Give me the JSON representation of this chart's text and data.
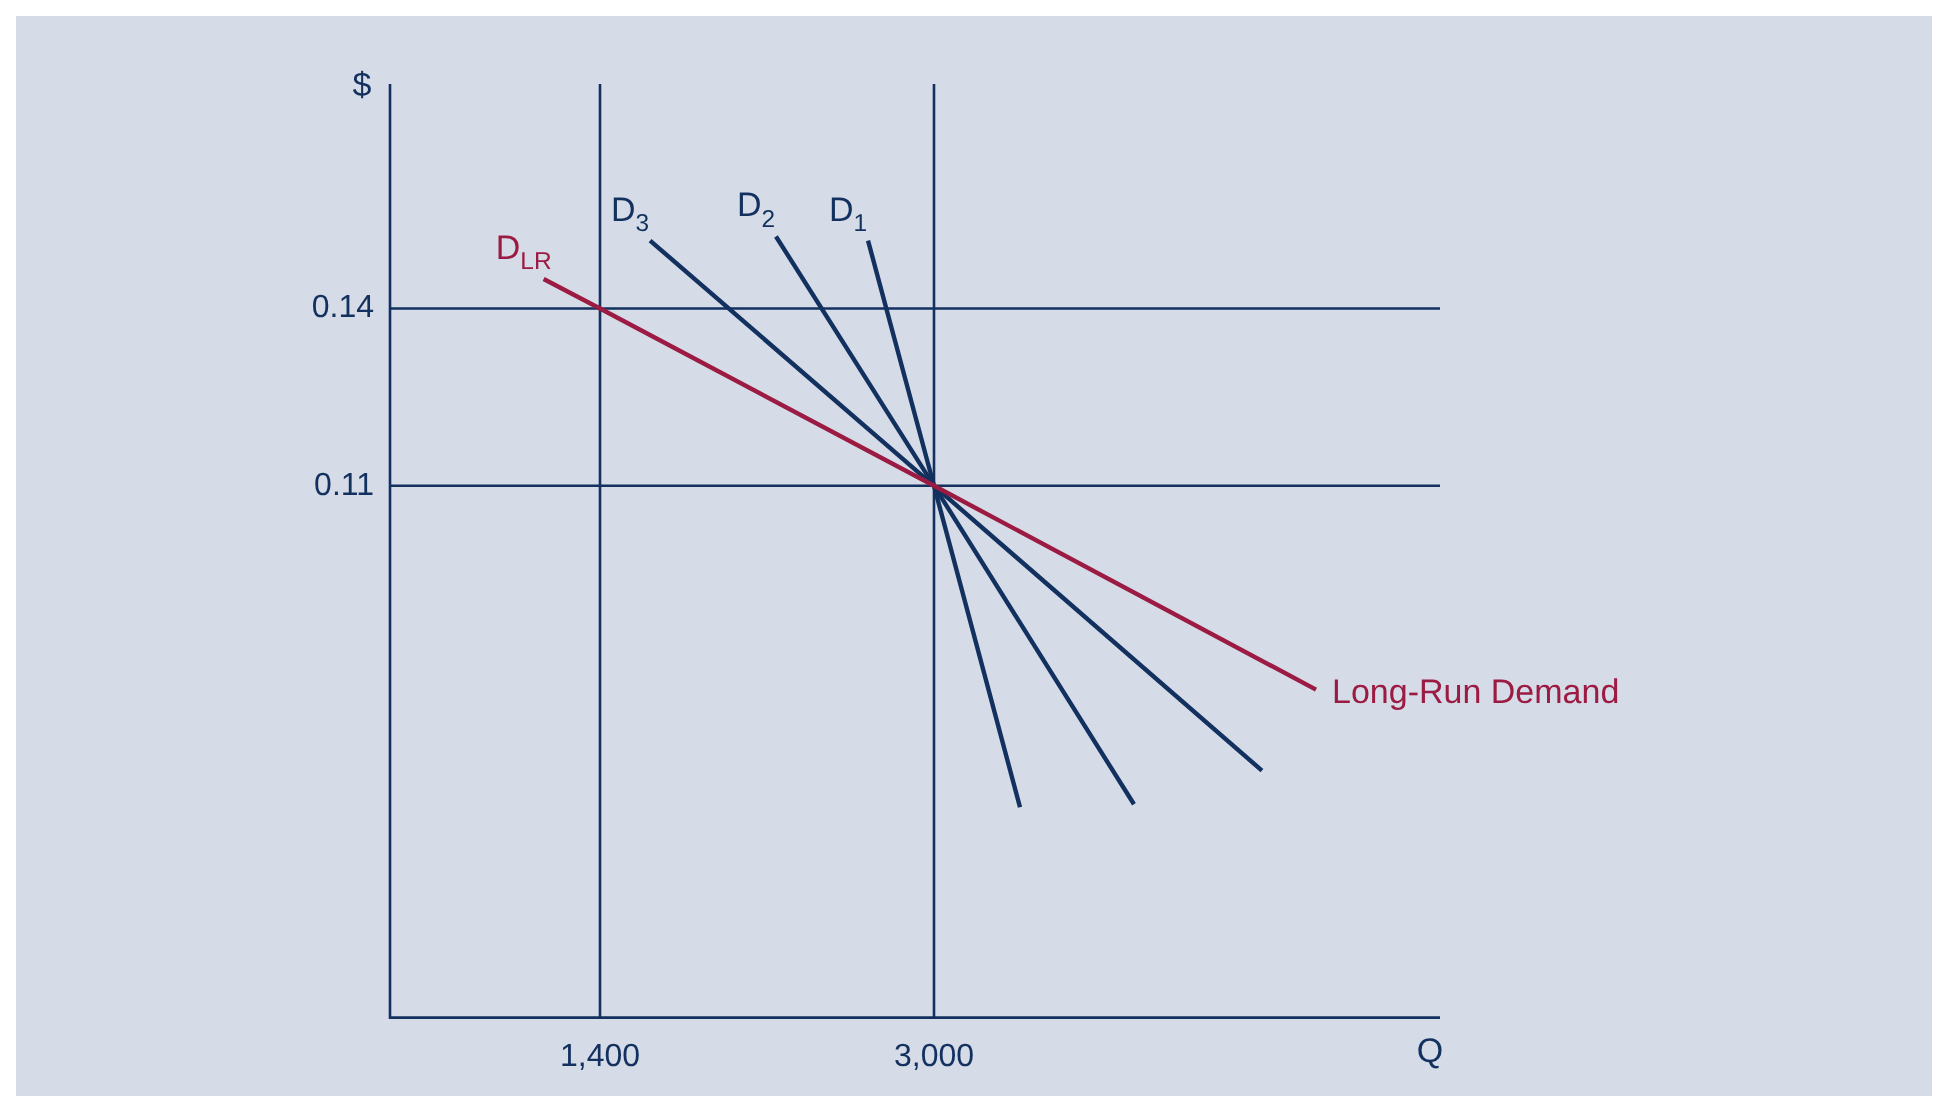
{
  "chart_data": {
    "type": "line",
    "xlabel": "Q",
    "ylabel": "$",
    "xlim": [
      394,
      5424
    ],
    "ylim": [
      0.02,
      0.178
    ],
    "xticks": [
      {
        "value": 1400,
        "label": "1,400"
      },
      {
        "value": 3000,
        "label": "3,000"
      }
    ],
    "yticks": [
      0.11,
      0.14
    ],
    "grid": false,
    "legend": false,
    "marker": "none",
    "line_style": "solid",
    "series": [
      {
        "name": "D$_{LR}$",
        "color": "#9b1b42",
        "x": [
          1130,
          1400,
          3000,
          4830
        ],
        "values": [
          0.145,
          0.14,
          0.11,
          0.0755
        ]
      },
      {
        "name": "D$_{3}$",
        "color": "#13315f",
        "x": [
          1640,
          3000,
          4571
        ],
        "values": [
          0.1515,
          0.11,
          0.0618
        ]
      },
      {
        "name": "D$_{2}$",
        "color": "#13315f",
        "x": [
          2243,
          3000,
          3958
        ],
        "values": [
          0.1522,
          0.11,
          0.0561
        ]
      },
      {
        "name": "D$_{1}$",
        "color": "#13315f",
        "x": [
          2684,
          3000,
          3412
        ],
        "values": [
          0.1515,
          0.11,
          0.0556
        ]
      }
    ],
    "ref_lines": [
      {
        "axis": "y",
        "value": 0.14,
        "color": "#13315f"
      },
      {
        "axis": "y",
        "value": 0.11,
        "color": "#13315f"
      },
      {
        "axis": "x",
        "value": 1400,
        "color": "#13315f"
      },
      {
        "axis": "x",
        "value": 3000,
        "color": "#13315f"
      }
    ],
    "annotations": [
      "Long-Run Demand"
    ]
  }
}
